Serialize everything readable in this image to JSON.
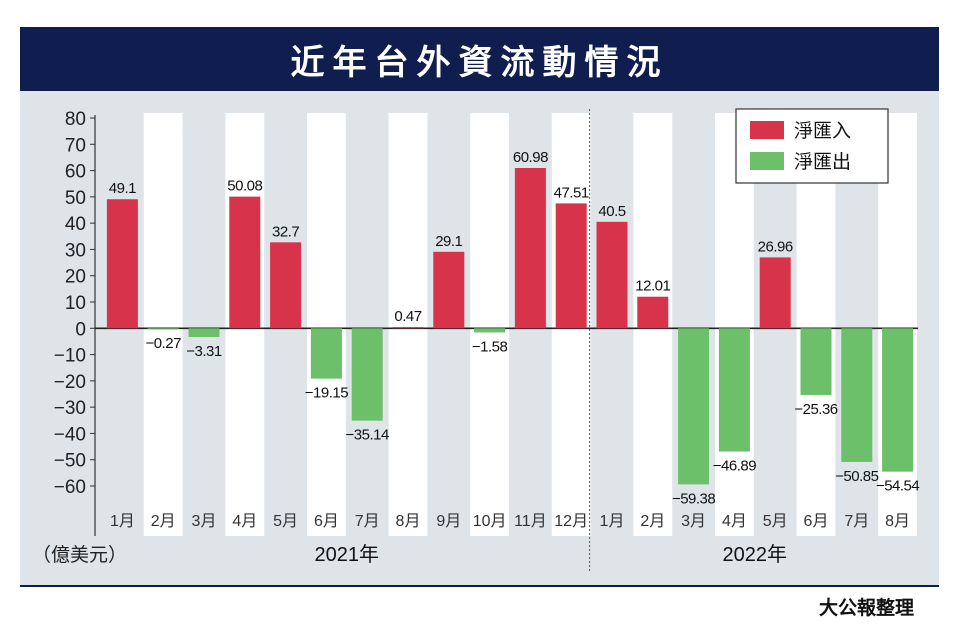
{
  "header": {
    "title": "近年台外資流動情況"
  },
  "source": "大公報整理",
  "chart_data": {
    "type": "bar",
    "title": "近年台外資流動情況",
    "ylabel": "（億美元）",
    "ylim": [
      -60,
      80
    ],
    "yticks": [
      80,
      70,
      60,
      50,
      40,
      30,
      20,
      10,
      0,
      -10,
      -20,
      -30,
      -40,
      -50,
      -60
    ],
    "ytick_labels": [
      "80",
      "70",
      "60",
      "50",
      "40",
      "30",
      "20",
      "10",
      "0",
      "−10",
      "−20",
      "−30",
      "−40",
      "−50",
      "−60"
    ],
    "categories": [
      "1月",
      "2月",
      "3月",
      "4月",
      "5月",
      "6月",
      "7月",
      "8月",
      "9月",
      "10月",
      "11月",
      "12月",
      "1月",
      "2月",
      "3月",
      "4月",
      "5月",
      "6月",
      "7月",
      "8月"
    ],
    "values": [
      49.1,
      -0.27,
      -3.31,
      50.08,
      32.7,
      -19.15,
      -35.14,
      0.47,
      29.1,
      -1.58,
      60.98,
      47.51,
      40.5,
      12.01,
      -59.38,
      -46.89,
      26.96,
      -25.36,
      -50.85,
      -54.54
    ],
    "value_labels": [
      "49.1",
      "−0.27",
      "−3.31",
      "50.08",
      "32.7",
      "−19.15",
      "−35.14",
      "0.47",
      "29.1",
      "−1.58",
      "60.98",
      "47.51",
      "40.5",
      "12.01",
      "−59.38",
      "−46.89",
      "26.96",
      "−25.36",
      "−50.85",
      "−54.54"
    ],
    "year_groups": [
      {
        "label": "2021年",
        "count": 12
      },
      {
        "label": "2022年",
        "count": 8
      }
    ],
    "legend": {
      "placement": "top-right",
      "items": [
        {
          "label": "淨匯入",
          "color": "#d7334b"
        },
        {
          "label": "淨匯出",
          "color": "#6cc06a"
        }
      ]
    },
    "colors": {
      "inflow": "#d7334b",
      "outflow": "#6cc06a",
      "panel": "#dfe4e9",
      "column_band": "#ffffff",
      "title_bg": "#0f1d4f"
    }
  }
}
